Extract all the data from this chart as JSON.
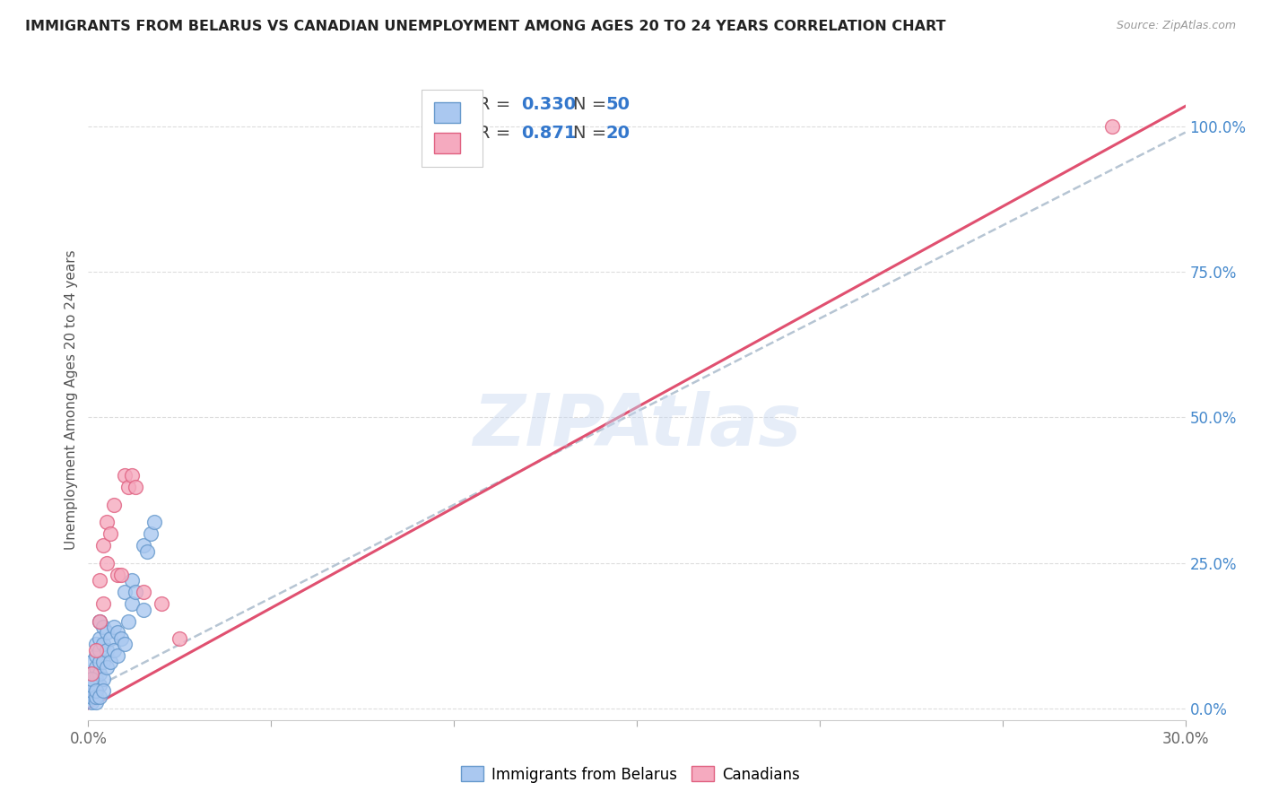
{
  "title": "IMMIGRANTS FROM BELARUS VS CANADIAN UNEMPLOYMENT AMONG AGES 20 TO 24 YEARS CORRELATION CHART",
  "source": "Source: ZipAtlas.com",
  "ylabel": "Unemployment Among Ages 20 to 24 years",
  "xlim": [
    0.0,
    0.3
  ],
  "ylim": [
    -0.02,
    1.08
  ],
  "xticks": [
    0.0,
    0.05,
    0.1,
    0.15,
    0.2,
    0.25,
    0.3
  ],
  "xticklabels": [
    "0.0%",
    "",
    "",
    "",
    "",
    "",
    "30.0%"
  ],
  "yticks_right": [
    0.0,
    0.25,
    0.5,
    0.75,
    1.0
  ],
  "yticklabels_right": [
    "0.0%",
    "25.0%",
    "50.0%",
    "75.0%",
    "100.0%"
  ],
  "blue_color": "#aac8f0",
  "pink_color": "#f5aabf",
  "blue_edge": "#6699cc",
  "pink_edge": "#e06080",
  "trend_blue_color": "#aabbcc",
  "trend_pink_color": "#e05070",
  "trend_blue_slope": 3.2,
  "trend_blue_intercept": 0.03,
  "trend_pink_slope": 3.45,
  "trend_pink_intercept": 0.0,
  "R_blue": 0.33,
  "N_blue": 50,
  "R_pink": 0.871,
  "N_pink": 20,
  "watermark": "ZIPAtlas",
  "watermark_color": "#c8d8f0",
  "blue_x": [
    0.001,
    0.001,
    0.001,
    0.001,
    0.002,
    0.002,
    0.002,
    0.002,
    0.002,
    0.003,
    0.003,
    0.003,
    0.003,
    0.003,
    0.003,
    0.004,
    0.004,
    0.004,
    0.004,
    0.005,
    0.005,
    0.005,
    0.006,
    0.006,
    0.007,
    0.007,
    0.008,
    0.008,
    0.009,
    0.01,
    0.01,
    0.011,
    0.012,
    0.012,
    0.013,
    0.015,
    0.015,
    0.016,
    0.017,
    0.018,
    0.001,
    0.001,
    0.001,
    0.001,
    0.001,
    0.002,
    0.002,
    0.002,
    0.003,
    0.004
  ],
  "blue_y": [
    0.02,
    0.04,
    0.06,
    0.08,
    0.03,
    0.05,
    0.07,
    0.09,
    0.11,
    0.04,
    0.06,
    0.08,
    0.1,
    0.12,
    0.15,
    0.05,
    0.08,
    0.11,
    0.14,
    0.07,
    0.1,
    0.13,
    0.08,
    0.12,
    0.1,
    0.14,
    0.09,
    0.13,
    0.12,
    0.11,
    0.2,
    0.15,
    0.18,
    0.22,
    0.2,
    0.17,
    0.28,
    0.27,
    0.3,
    0.32,
    0.01,
    0.02,
    0.03,
    0.04,
    0.05,
    0.01,
    0.02,
    0.03,
    0.02,
    0.03
  ],
  "pink_x": [
    0.001,
    0.002,
    0.003,
    0.003,
    0.004,
    0.004,
    0.005,
    0.005,
    0.006,
    0.007,
    0.008,
    0.009,
    0.01,
    0.011,
    0.012,
    0.013,
    0.015,
    0.02,
    0.025,
    0.28
  ],
  "pink_y": [
    0.06,
    0.1,
    0.15,
    0.22,
    0.18,
    0.28,
    0.25,
    0.32,
    0.3,
    0.35,
    0.23,
    0.23,
    0.4,
    0.38,
    0.4,
    0.38,
    0.2,
    0.18,
    0.12,
    1.0
  ]
}
